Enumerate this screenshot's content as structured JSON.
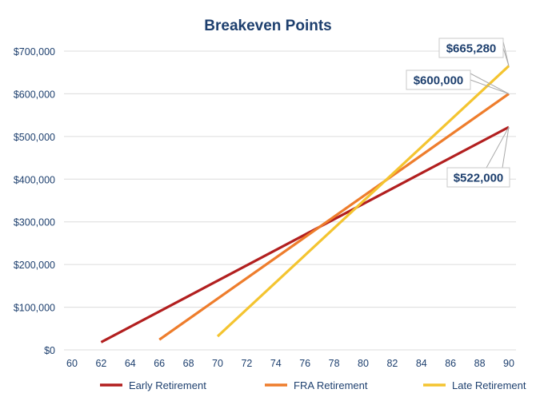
{
  "chart_data": {
    "type": "line",
    "title": "Breakeven Points",
    "xlabel": "",
    "ylabel": "",
    "xlim": [
      60,
      90
    ],
    "ylim": [
      0,
      700000
    ],
    "x_ticks": [
      "60",
      "62",
      "64",
      "66",
      "68",
      "70",
      "72",
      "74",
      "76",
      "78",
      "80",
      "82",
      "84",
      "86",
      "88",
      "90"
    ],
    "y_ticks": [
      "$0",
      "$100,000",
      "$200,000",
      "$300,000",
      "$400,000",
      "$500,000",
      "$600,000",
      "$700,000"
    ],
    "grid": true,
    "legend_position": "bottom",
    "series": [
      {
        "name": "Early Retirement",
        "color": "#b21f1f",
        "x": [
          62,
          90
        ],
        "y": [
          18000,
          522000
        ],
        "end_label": "$522,000"
      },
      {
        "name": "FRA Retirement",
        "color": "#ee7d2c",
        "x": [
          66,
          90
        ],
        "y": [
          24000,
          600000
        ],
        "end_label": "$600,000"
      },
      {
        "name": "Late Retirement",
        "color": "#f4c430",
        "x": [
          70,
          90
        ],
        "y": [
          31680,
          665280
        ],
        "end_label": "$665,280"
      }
    ]
  },
  "colors": {
    "text": "#1d3f6e",
    "grid": "#dcdcdc"
  }
}
